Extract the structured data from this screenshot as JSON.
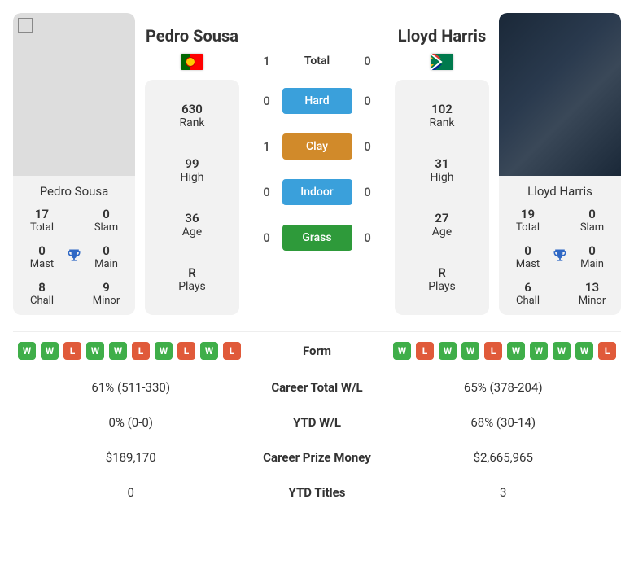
{
  "p1": {
    "name": "Pedro Sousa",
    "flag_colors": {
      "left": "#006600",
      "right": "#ff0000",
      "circle": "#ffcc00"
    },
    "photo_broken": true,
    "titles": {
      "total": 17,
      "slam": 0,
      "mast": 0,
      "main": 0,
      "chall": 8,
      "minor": 9
    },
    "stats": {
      "rank": "630",
      "high": "99",
      "age": "36",
      "plays": "R"
    },
    "form": [
      "W",
      "W",
      "L",
      "W",
      "W",
      "L",
      "W",
      "L",
      "W",
      "L"
    ]
  },
  "p2": {
    "name": "Lloyd Harris",
    "flag_type": "za",
    "photo_url": "linear-gradient(135deg,#1a2838 0%,#2a3a4e 40%,#3a4858 60%,#1a2838 100%)",
    "titles": {
      "total": 19,
      "slam": 0,
      "mast": 0,
      "main": 0,
      "chall": 6,
      "minor": 13
    },
    "stats": {
      "rank": "102",
      "high": "31",
      "age": "27",
      "plays": "R"
    },
    "form": [
      "W",
      "L",
      "W",
      "W",
      "L",
      "W",
      "W",
      "W",
      "W",
      "L"
    ]
  },
  "labels": {
    "total_t": "Total",
    "slam": "Slam",
    "mast": "Mast",
    "main": "Main",
    "chall": "Chall",
    "minor": "Minor",
    "rank": "Rank",
    "high": "High",
    "age": "Age",
    "plays": "Plays"
  },
  "h2h": {
    "total": {
      "label": "Total",
      "p1": 1,
      "p2": 0
    },
    "surfaces": [
      {
        "name": "Hard",
        "color": "#3aa0db",
        "p1": 0,
        "p2": 0
      },
      {
        "name": "Clay",
        "color": "#d18a2a",
        "p1": 1,
        "p2": 0
      },
      {
        "name": "Indoor",
        "color": "#3aa0db",
        "p1": 0,
        "p2": 0
      },
      {
        "name": "Grass",
        "color": "#2e9a3a",
        "p1": 0,
        "p2": 0
      }
    ]
  },
  "rows": [
    {
      "label": "Form",
      "type": "form"
    },
    {
      "label": "Career Total W/L",
      "p1": "61% (511-330)",
      "p2": "65% (378-204)"
    },
    {
      "label": "YTD W/L",
      "p1": "0% (0-0)",
      "p2": "68% (30-14)"
    },
    {
      "label": "Career Prize Money",
      "p1": "$189,170",
      "p2": "$2,665,965"
    },
    {
      "label": "YTD Titles",
      "p1": "0",
      "p2": "3"
    }
  ]
}
